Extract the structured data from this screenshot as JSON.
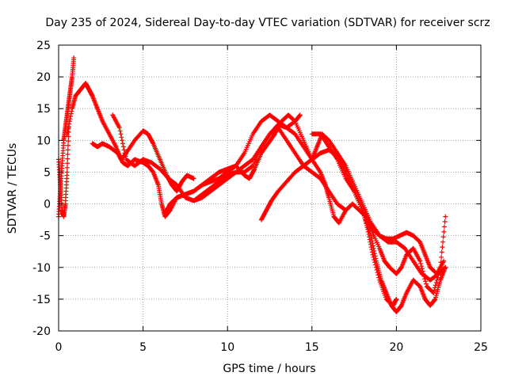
{
  "chart_data": {
    "type": "scatter",
    "title": "Day 235 of 2024, Sidereal Day-to-day VTEC variation (SDTVAR) for receiver scrz",
    "xlabel": "GPS time / hours",
    "ylabel": "SDTVAR / TECUs",
    "xlim": [
      0,
      25
    ],
    "ylim": [
      -20,
      25
    ],
    "x_ticks": [
      0,
      5,
      10,
      15,
      20,
      25
    ],
    "y_ticks": [
      -20,
      -15,
      -10,
      -5,
      0,
      5,
      10,
      15,
      20,
      25
    ],
    "grid": true,
    "marker": "+",
    "series": [
      {
        "name": "s1",
        "color": "#ff0000",
        "x": [
          0.0,
          0.1,
          0.2,
          0.3,
          0.4,
          0.5,
          0.6,
          0.7,
          0.8,
          0.9
        ],
        "y": [
          -2,
          2,
          6,
          10,
          12,
          14,
          16,
          18,
          20,
          23
        ]
      },
      {
        "name": "s2",
        "color": "#ff0000",
        "x": [
          0.0,
          0.1,
          0.2,
          0.3,
          0.4,
          0.5,
          0.6
        ],
        "y": [
          7,
          3,
          -1,
          -2,
          0,
          5,
          12
        ]
      },
      {
        "name": "s3",
        "color": "#ff0000",
        "x": [
          0.5,
          0.8,
          1.0,
          1.3,
          1.6,
          1.8,
          2.0,
          2.3,
          2.6,
          3.0,
          3.4,
          3.7,
          4.0,
          4.5,
          5.0,
          5.3,
          5.6,
          6.0,
          6.4,
          6.7,
          7.0,
          7.3,
          7.6,
          8.0
        ],
        "y": [
          11,
          15,
          17,
          18,
          19,
          18,
          17,
          15,
          13,
          11,
          9,
          7,
          8,
          10,
          11.5,
          11,
          9.5,
          7,
          4.5,
          3,
          2,
          3.5,
          4.5,
          4
        ]
      },
      {
        "name": "s4",
        "color": "#ff0000",
        "x": [
          2.0,
          2.3,
          2.6,
          3.0,
          3.5,
          3.8,
          4.1,
          4.5,
          5.0,
          5.3,
          5.6,
          5.9,
          6.1,
          6.3,
          6.6,
          7.0,
          7.5,
          8.0,
          8.5,
          9.0,
          9.5,
          10.0,
          10.5,
          11.0,
          11.5,
          12.0,
          12.5,
          13.0,
          13.5,
          14.0,
          14.3
        ],
        "y": [
          9.5,
          9,
          9.5,
          9,
          8,
          6.5,
          6,
          7,
          6.5,
          6,
          5,
          3,
          0,
          -2,
          -1,
          1,
          1.5,
          2,
          3,
          3.5,
          4,
          5,
          6,
          8,
          11,
          13,
          14,
          13,
          12,
          13,
          14
        ]
      },
      {
        "name": "s5",
        "color": "#ff0000",
        "x": [
          3.2,
          3.6,
          4.0,
          4.5,
          5.0,
          5.5,
          6.0,
          6.5,
          7.0,
          7.5,
          8.0,
          8.5,
          9.0,
          9.5,
          10.0,
          10.5,
          11.0,
          11.5,
          12.0,
          12.5,
          13.0,
          13.5,
          14.0,
          14.5,
          15.0,
          15.5,
          16.0,
          16.5,
          17.0
        ],
        "y": [
          14,
          12,
          7,
          6,
          7,
          6.5,
          5.5,
          4,
          3,
          1,
          0.5,
          1,
          2,
          3,
          4,
          5,
          6,
          7,
          9,
          11,
          12,
          10,
          8,
          6,
          5,
          4,
          2,
          0,
          -1
        ]
      },
      {
        "name": "s6",
        "color": "#ff0000",
        "x": [
          6.3,
          6.6,
          7.0,
          7.5,
          8.0,
          8.5,
          9.0,
          9.5,
          10.0,
          10.5,
          11.0,
          11.3,
          11.6,
          12.0,
          12.4,
          12.8,
          13.2,
          13.6,
          14.0,
          14.5,
          15.0,
          15.5,
          15.8,
          16.0,
          16.3,
          16.6,
          17.0,
          17.4,
          17.8,
          18.2,
          18.6,
          19.0,
          19.4,
          19.8,
          20.2,
          20.6,
          21.0,
          21.4,
          21.7,
          22.0,
          22.4,
          22.8
        ],
        "y": [
          -1.5,
          0,
          1,
          1.5,
          2,
          3,
          4,
          5,
          5.5,
          6,
          4.5,
          4,
          5.5,
          8,
          9.5,
          11,
          13,
          14,
          13,
          10,
          7,
          5,
          3,
          1,
          -2,
          -3,
          -1,
          0,
          -1,
          -2,
          -4,
          -5,
          -5.5,
          -5.5,
          -5,
          -4.5,
          -5,
          -6,
          -8,
          -10,
          -11,
          -9
        ]
      },
      {
        "name": "s7",
        "color": "#ff0000",
        "x": [
          8.0,
          8.5,
          9.0,
          9.5,
          10.0,
          10.5,
          11.0,
          11.5,
          12.0,
          12.5,
          13.0,
          13.5,
          14.0,
          14.5,
          15.0,
          15.3,
          15.6,
          16.0,
          16.5,
          17.0,
          17.5,
          18.0,
          18.3,
          18.6,
          19.0,
          19.4,
          19.8,
          20.0
        ],
        "y": [
          0.5,
          1.5,
          2.5,
          3.5,
          4.5,
          5,
          5,
          6,
          9,
          11,
          12.5,
          12,
          11,
          9,
          7,
          9,
          11,
          10,
          8,
          5,
          2,
          -1,
          -4,
          -8,
          -12,
          -15,
          -16,
          -15
        ]
      },
      {
        "name": "s8",
        "color": "#ff0000",
        "x": [
          12.0,
          12.3,
          12.6,
          13.0,
          13.5,
          14.0,
          14.5,
          15.0,
          15.5,
          16.0,
          16.5,
          17.0,
          17.5,
          18.0,
          18.5,
          19.0,
          19.3,
          19.6,
          20.0,
          20.3,
          20.6,
          21.0,
          21.4,
          21.8,
          22.2,
          22.6,
          22.9
        ],
        "y": [
          -2.5,
          -1,
          0.5,
          2,
          3.5,
          5,
          6,
          7,
          8,
          8.5,
          7.5,
          5,
          2,
          -1,
          -4,
          -7,
          -9,
          -10,
          -11,
          -10,
          -8,
          -7,
          -9,
          -13,
          -14,
          -10,
          -2
        ]
      },
      {
        "name": "s9",
        "color": "#ff0000",
        "x": [
          15.0,
          15.5,
          16.0,
          16.5,
          17.0,
          17.5,
          18.0,
          18.5,
          18.8,
          19.1,
          19.4,
          19.7,
          20.0,
          20.3,
          20.6,
          21.0,
          21.4,
          21.7,
          22.0,
          22.3,
          22.6,
          22.9
        ],
        "y": [
          11,
          11,
          9,
          7,
          4,
          2,
          -1,
          -5,
          -9,
          -12,
          -14,
          -16,
          -17,
          -16,
          -14,
          -12,
          -13,
          -15,
          -16,
          -15,
          -12,
          -10
        ]
      },
      {
        "name": "s10",
        "color": "#ff0000",
        "x": [
          15.5,
          16.0,
          16.5,
          17.0,
          17.5,
          18.0,
          18.5,
          19.0,
          19.5,
          20.0,
          20.5,
          21.0,
          21.5,
          22.0,
          22.5,
          22.9
        ],
        "y": [
          11,
          10,
          8,
          6,
          3,
          0,
          -3,
          -5,
          -6,
          -6,
          -7,
          -9,
          -11,
          -12,
          -11,
          -10
        ]
      }
    ]
  }
}
